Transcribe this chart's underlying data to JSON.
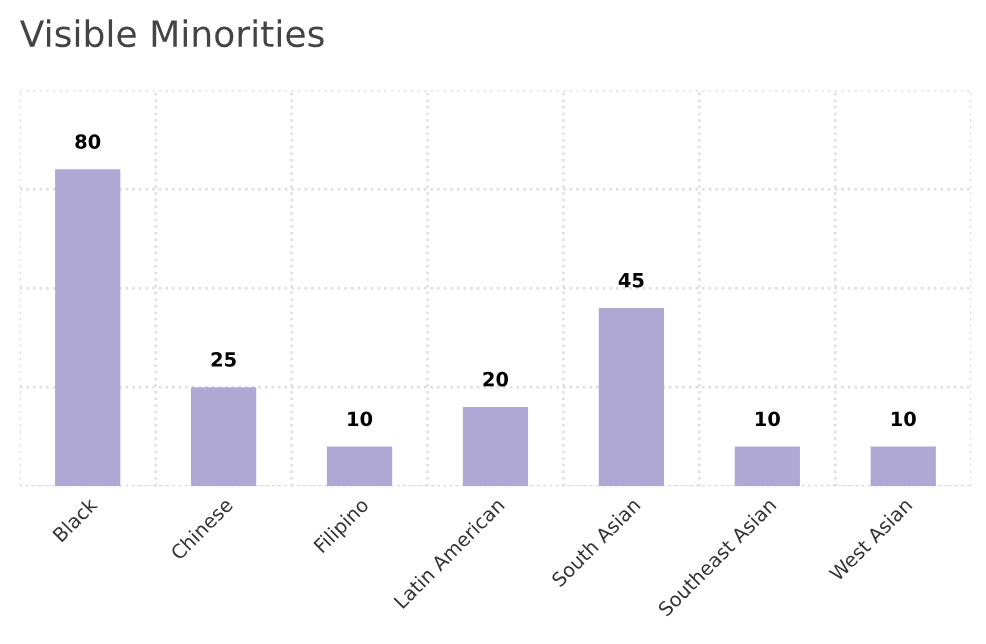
{
  "chart_data": {
    "type": "bar",
    "title": "Visible Minorities",
    "categories": [
      "Black",
      "Chinese",
      "Filipino",
      "Latin American",
      "South Asian",
      "Southeast Asian",
      "West Asian"
    ],
    "values": [
      80,
      25,
      10,
      20,
      45,
      10,
      10
    ],
    "color": "#b0a8d4",
    "data_labels": true,
    "ylim": [
      0,
      100
    ],
    "yticks": [
      {
        "value": 0,
        "label": null
      },
      {
        "value": 25,
        "label": null
      },
      {
        "value": 50,
        "label": null
      },
      {
        "value": 75,
        "label": null
      },
      {
        "value": 100,
        "label": null
      }
    ],
    "grid": true,
    "tick_labels": "x"
  }
}
